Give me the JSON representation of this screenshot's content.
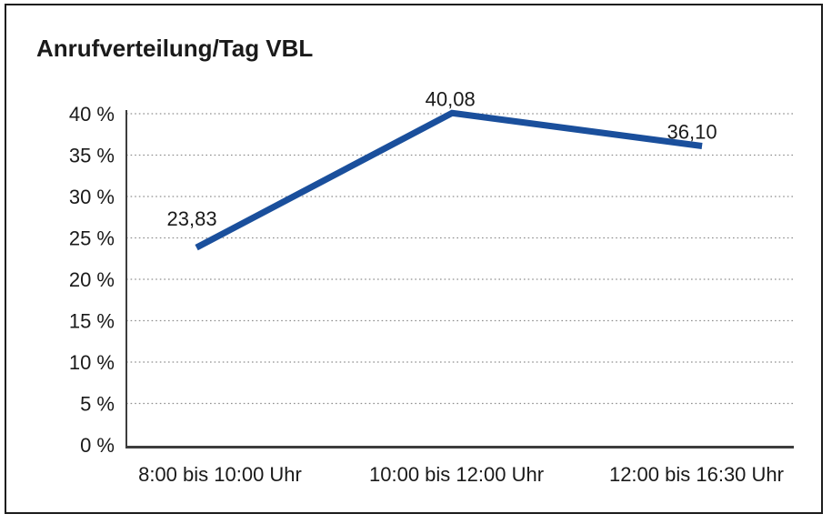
{
  "figure": {
    "title": "Anrufverteilung/Tag VBL"
  },
  "colors": {
    "line": "#1a4f9c",
    "grid": "#8f8f8f",
    "axis": "#3d3d3d",
    "text": "#1a1a1a",
    "background": "#ffffff",
    "border": "#1c1c1c"
  },
  "chart_data": {
    "type": "line",
    "title": "Anrufverteilung/Tag VBL",
    "categories": [
      "8:00 bis 10:00 Uhr",
      "10:00 bis 12:00 Uhr",
      "12:00 bis 16:30 Uhr"
    ],
    "values": [
      23.83,
      40.08,
      36.1
    ],
    "point_labels": [
      "23,83",
      "40,08",
      "36,10"
    ],
    "y_ticks": [
      {
        "value": 40,
        "label": "40 %"
      },
      {
        "value": 35,
        "label": "35 %"
      },
      {
        "value": 30,
        "label": "30 %"
      },
      {
        "value": 25,
        "label": "25 %"
      },
      {
        "value": 20,
        "label": "20 %"
      },
      {
        "value": 15,
        "label": "15 %"
      },
      {
        "value": 10,
        "label": "10 %"
      },
      {
        "value": 5,
        "label": "5 %"
      },
      {
        "value": 0,
        "label": "0 %"
      }
    ],
    "ylim": [
      0,
      40
    ],
    "xlabel": "",
    "ylabel": "",
    "grid": "horizontal-dotted",
    "legend": "none",
    "decimal_separator": ","
  }
}
